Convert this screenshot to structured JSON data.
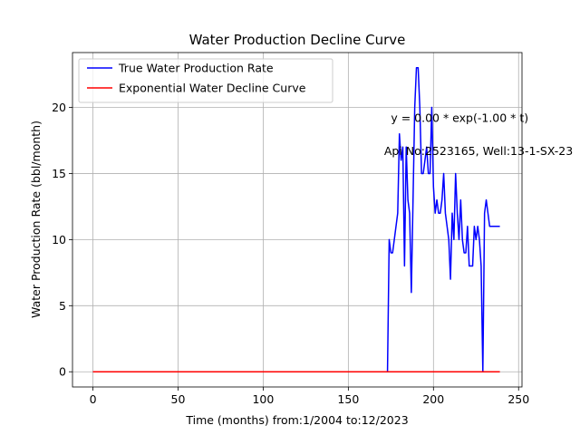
{
  "chart_data": {
    "type": "line",
    "title": "Water Production Decline Curve",
    "xlabel": "Time (months) from:1/2004 to:12/2023",
    "ylabel": "Water Production Rate (bbl/month)",
    "xlim": [
      -12,
      252
    ],
    "ylim": [
      -1.15,
      24.15
    ],
    "xticks": [
      0,
      50,
      100,
      150,
      200,
      250
    ],
    "yticks": [
      0,
      5,
      10,
      15,
      20
    ],
    "grid": true,
    "legend_position": "top-left",
    "annotations": [
      {
        "text": "y = 0.00 * exp(-1.00 * t)",
        "x": 175,
        "y": 18.9
      },
      {
        "text": "Api No:2523165, Well:13-1-SX-23",
        "x": 171,
        "y": 16.4
      }
    ],
    "series": [
      {
        "name": "True Water Production Rate",
        "color": "#0000ff",
        "x": [
          0,
          173,
          174,
          175,
          176,
          177,
          178,
          179,
          180,
          181,
          182,
          183,
          184,
          185,
          186,
          187,
          188,
          189,
          190,
          191,
          192,
          193,
          194,
          195,
          196,
          197,
          198,
          199,
          200,
          201,
          202,
          203,
          204,
          205,
          206,
          207,
          208,
          209,
          210,
          211,
          212,
          213,
          214,
          215,
          216,
          217,
          218,
          219,
          220,
          221,
          222,
          223,
          224,
          225,
          226,
          227,
          228,
          229,
          230,
          231,
          232,
          233,
          234,
          235,
          236,
          237,
          238,
          239
        ],
        "y": [
          0,
          0,
          10,
          9,
          9,
          10,
          11,
          12,
          18,
          16,
          17,
          8,
          17,
          13,
          12,
          6,
          13,
          20,
          23,
          23,
          20,
          15,
          15,
          16,
          17,
          15,
          15,
          20,
          14,
          12,
          13,
          12,
          12,
          13,
          15,
          12,
          11,
          10,
          7,
          12,
          10,
          15,
          12,
          10,
          13,
          10,
          9,
          9,
          11,
          8,
          8,
          8,
          11,
          10,
          11,
          10,
          8,
          0,
          12,
          13,
          12,
          11,
          11,
          11,
          11,
          11,
          11,
          11
        ]
      },
      {
        "name": "Exponential Water Decline Curve",
        "color": "#ff0000",
        "x": [
          0,
          239
        ],
        "y": [
          0,
          0
        ]
      }
    ]
  }
}
